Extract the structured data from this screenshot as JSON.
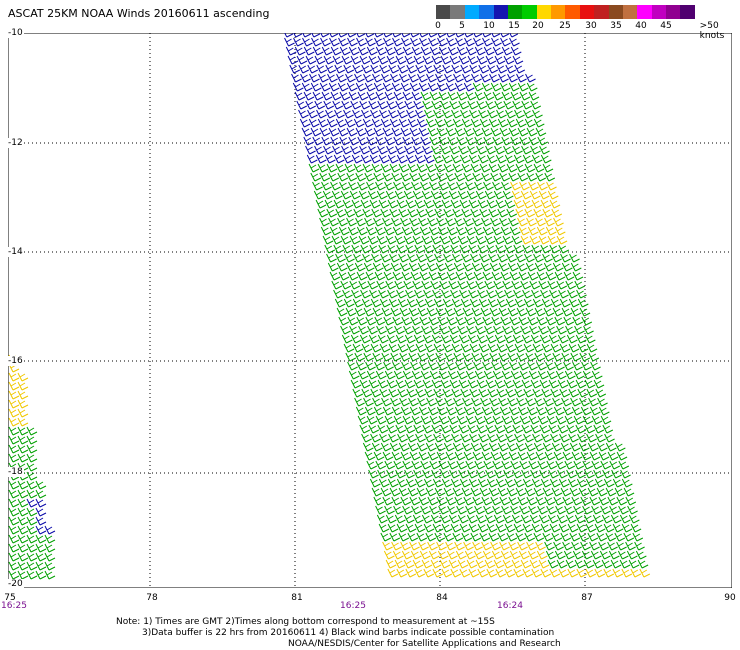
{
  "title": "ASCAT 25KM NOAA Winds 20160611 ascending",
  "legend": {
    "ticks": [
      "0",
      "5",
      "10",
      "15",
      "20",
      "25",
      "30",
      "35",
      "40",
      "45",
      ">50 knots"
    ],
    "colors": [
      "#4a4a4a",
      "#7a7a7a",
      "#00aaff",
      "#1070e8",
      "#1515b0",
      "#00a000",
      "#00cc00",
      "#ffd800",
      "#ff9900",
      "#ff5a00",
      "#e81010",
      "#c02020",
      "#8a4a20",
      "#c07040",
      "#ff00ff",
      "#c000c0",
      "#900090",
      "#500070"
    ]
  },
  "y_axis": {
    "ticks": [
      "-10",
      "-12",
      "-14",
      "-16",
      "-18",
      "-20"
    ]
  },
  "x_axis": {
    "ticks": [
      "75",
      "78",
      "81",
      "84",
      "87",
      "90"
    ]
  },
  "time_labels": [
    "16:25",
    "16:25",
    "16:24"
  ],
  "notes": {
    "line1": "Note: 1) Times are GMT 2)Times along bottom correspond to measurement at ~15S",
    "line2": "3)Data buffer is 22 hrs from 20160611 4) Black wind barbs indicate possible contamination",
    "line3": "NOAA/NESDIS/Center for Satellite Applications and Research"
  },
  "wind_colors": {
    "blue": "#0a0aa8",
    "green": "#00a000",
    "yellow": "#f0c800"
  },
  "map": {
    "lon_range": [
      75,
      90
    ],
    "lat_range": [
      -10,
      -20
    ],
    "grid": true,
    "style": "dotted"
  }
}
